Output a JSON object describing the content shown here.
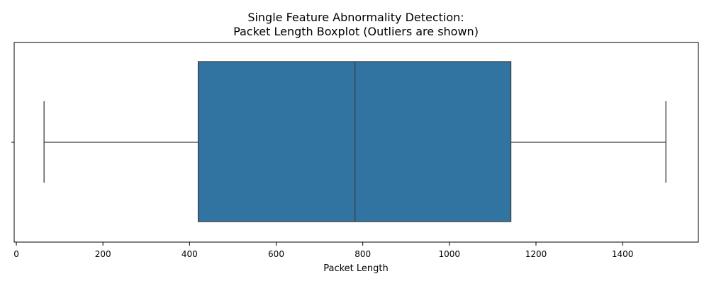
{
  "chart_data": {
    "type": "boxplot",
    "title_lines": [
      "Single Feature Abnormality Detection:",
      "Packet Length Boxplot (Outliers are shown)"
    ],
    "xlabel": "Packet Length",
    "xlim": [
      -5,
      1575
    ],
    "xticks": [
      0,
      200,
      400,
      600,
      800,
      1000,
      1200,
      1400
    ],
    "xtick_labels": [
      "0",
      "200",
      "400",
      "600",
      "800",
      "1000",
      "1200",
      "1400"
    ],
    "box": {
      "whisker_low": 64,
      "q1": 420,
      "median": 782,
      "q3": 1142,
      "whisker_high": 1500
    },
    "outliers": [],
    "colors": {
      "box_fill": "#3274a1",
      "line": "#3f3f3f",
      "axis": "#000000"
    }
  }
}
